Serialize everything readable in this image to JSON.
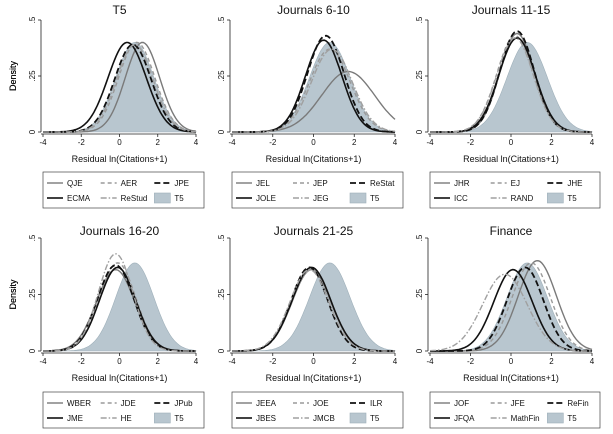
{
  "y_axis_label": "Density",
  "x_axis_label": "Residual ln(Citations+1)",
  "chart_data": [
    {
      "type": "area",
      "title": "T5",
      "xlim": [
        -4,
        4
      ],
      "ylim": [
        0,
        0.5
      ],
      "xticks": [
        -4,
        -2,
        0,
        2,
        4
      ],
      "yticks": [
        {
          "v": 0,
          "label": "0"
        },
        {
          "v": 0.25,
          "label": ".25"
        },
        {
          "v": 0.5,
          "label": ".5"
        }
      ],
      "shaded": {
        "name": "T5",
        "mu": 0.8,
        "sd": 1.0,
        "peak": 0.4
      },
      "series": [
        {
          "name": "QJE",
          "style": "solid-gray",
          "mu": 1.2,
          "sd": 0.9,
          "peak": 0.4
        },
        {
          "name": "AER",
          "style": "dash-gray",
          "mu": 0.9,
          "sd": 0.95,
          "peak": 0.4
        },
        {
          "name": "JPE",
          "style": "dash-black",
          "mu": 0.7,
          "sd": 0.95,
          "peak": 0.39
        },
        {
          "name": "ECMA",
          "style": "solid-black",
          "mu": 0.4,
          "sd": 1.0,
          "peak": 0.4
        },
        {
          "name": "ReStud",
          "style": "dashdot-gray",
          "mu": 0.8,
          "sd": 0.95,
          "peak": 0.39
        }
      ],
      "legend": [
        "QJE",
        "AER",
        "JPE",
        "ECMA",
        "ReStud",
        "T5"
      ]
    },
    {
      "type": "area",
      "title": "Journals 6-10",
      "xlim": [
        -4,
        4
      ],
      "ylim": [
        0,
        0.5
      ],
      "xticks": [
        -4,
        -2,
        0,
        2,
        4
      ],
      "yticks": [
        {
          "v": 0,
          "label": "0"
        },
        {
          "v": 0.25,
          "label": ".25"
        },
        {
          "v": 0.5,
          "label": ".5"
        }
      ],
      "shaded": {
        "name": "T5",
        "mu": 0.8,
        "sd": 1.0,
        "peak": 0.4
      },
      "series": [
        {
          "name": "JEL",
          "style": "solid-gray",
          "mu": 1.7,
          "sd": 1.3,
          "peak": 0.27
        },
        {
          "name": "JEP",
          "style": "dash-gray",
          "mu": 0.8,
          "sd": 1.0,
          "peak": 0.37
        },
        {
          "name": "ReStat",
          "style": "dash-black",
          "mu": 0.6,
          "sd": 0.9,
          "peak": 0.43
        },
        {
          "name": "JOLE",
          "style": "solid-black",
          "mu": 0.5,
          "sd": 0.9,
          "peak": 0.41
        },
        {
          "name": "JEG",
          "style": "dashdot-gray",
          "mu": 0.9,
          "sd": 1.0,
          "peak": 0.37
        }
      ],
      "legend": [
        "JEL",
        "JEP",
        "ReStat",
        "JOLE",
        "JEG",
        "T5"
      ]
    },
    {
      "type": "area",
      "title": "Journals 11-15",
      "xlim": [
        -4,
        4
      ],
      "ylim": [
        0,
        0.5
      ],
      "xticks": [
        -4,
        -2,
        0,
        2,
        4
      ],
      "yticks": [
        {
          "v": 0,
          "label": "0"
        },
        {
          "v": 0.25,
          "label": ".25"
        },
        {
          "v": 0.5,
          "label": ".5"
        }
      ],
      "shaded": {
        "name": "T5",
        "mu": 0.8,
        "sd": 1.0,
        "peak": 0.4
      },
      "series": [
        {
          "name": "JHR",
          "style": "solid-gray",
          "mu": 0.3,
          "sd": 0.85,
          "peak": 0.44
        },
        {
          "name": "EJ",
          "style": "dash-gray",
          "mu": 0.2,
          "sd": 0.9,
          "peak": 0.43
        },
        {
          "name": "JHE",
          "style": "dash-black",
          "mu": 0.3,
          "sd": 0.85,
          "peak": 0.45
        },
        {
          "name": "ICC",
          "style": "solid-black",
          "mu": 0.3,
          "sd": 0.9,
          "peak": 0.42
        },
        {
          "name": "RAND",
          "style": "dashdot-gray",
          "mu": 0.2,
          "sd": 0.9,
          "peak": 0.42
        }
      ],
      "legend": [
        "JHR",
        "EJ",
        "JHE",
        "ICC",
        "RAND",
        "T5"
      ]
    },
    {
      "type": "area",
      "title": "Journals 16-20",
      "xlim": [
        -4,
        4
      ],
      "ylim": [
        0,
        0.5
      ],
      "xticks": [
        -4,
        -2,
        0,
        2,
        4
      ],
      "yticks": [
        {
          "v": 0,
          "label": "0"
        },
        {
          "v": 0.25,
          "label": ".25"
        },
        {
          "v": 0.5,
          "label": ".5"
        }
      ],
      "shaded": {
        "name": "T5",
        "mu": 0.8,
        "sd": 1.0,
        "peak": 0.39
      },
      "series": [
        {
          "name": "WBER",
          "style": "solid-gray",
          "mu": -0.2,
          "sd": 1.0,
          "peak": 0.36
        },
        {
          "name": "JDE",
          "style": "dash-gray",
          "mu": -0.1,
          "sd": 0.95,
          "peak": 0.39
        },
        {
          "name": "JPub",
          "style": "dash-black",
          "mu": -0.2,
          "sd": 0.95,
          "peak": 0.38
        },
        {
          "name": "JME",
          "style": "solid-black",
          "mu": -0.1,
          "sd": 0.95,
          "peak": 0.37
        },
        {
          "name": "HE",
          "style": "dashdot-gray",
          "mu": -0.2,
          "sd": 0.9,
          "peak": 0.43
        }
      ],
      "legend": [
        "WBER",
        "JDE",
        "JPub",
        "JME",
        "HE",
        "T5"
      ]
    },
    {
      "type": "area",
      "title": "Journals 21-25",
      "xlim": [
        -4,
        4
      ],
      "ylim": [
        0,
        0.5
      ],
      "xticks": [
        -4,
        -2,
        0,
        2,
        4
      ],
      "yticks": [
        {
          "v": 0,
          "label": "0"
        },
        {
          "v": 0.25,
          "label": ".25"
        },
        {
          "v": 0.5,
          "label": ".5"
        }
      ],
      "shaded": {
        "name": "T5",
        "mu": 0.8,
        "sd": 1.0,
        "peak": 0.39
      },
      "series": [
        {
          "name": "JEEA",
          "style": "solid-gray",
          "mu": -0.1,
          "sd": 0.95,
          "peak": 0.36
        },
        {
          "name": "JOE",
          "style": "dash-gray",
          "mu": -0.1,
          "sd": 0.95,
          "peak": 0.36
        },
        {
          "name": "ILR",
          "style": "dash-black",
          "mu": -0.2,
          "sd": 0.9,
          "peak": 0.37
        },
        {
          "name": "JBES",
          "style": "solid-black",
          "mu": -0.1,
          "sd": 0.95,
          "peak": 0.37
        },
        {
          "name": "JMCB",
          "style": "dashdot-gray",
          "mu": -0.2,
          "sd": 0.95,
          "peak": 0.36
        }
      ],
      "legend": [
        "JEEA",
        "JOE",
        "ILR",
        "JBES",
        "JMCB",
        "T5"
      ]
    },
    {
      "type": "area",
      "title": "Finance",
      "xlim": [
        -4,
        4
      ],
      "ylim": [
        0,
        0.5
      ],
      "xticks": [
        -4,
        -2,
        0,
        2,
        4
      ],
      "yticks": [
        {
          "v": 0,
          "label": "0"
        },
        {
          "v": 0.25,
          "label": ".25"
        },
        {
          "v": 0.5,
          "label": ".5"
        }
      ],
      "shaded": {
        "name": "T5",
        "mu": 0.8,
        "sd": 1.0,
        "peak": 0.39
      },
      "series": [
        {
          "name": "JOF",
          "style": "solid-gray",
          "mu": 1.3,
          "sd": 0.95,
          "peak": 0.4
        },
        {
          "name": "JFE",
          "style": "dash-gray",
          "mu": 1.0,
          "sd": 0.95,
          "peak": 0.39
        },
        {
          "name": "ReFin",
          "style": "dash-black",
          "mu": 0.7,
          "sd": 0.9,
          "peak": 0.37
        },
        {
          "name": "JFQA",
          "style": "solid-black",
          "mu": 0.1,
          "sd": 0.95,
          "peak": 0.36
        },
        {
          "name": "MathFin",
          "style": "dashdot-gray",
          "mu": -0.3,
          "sd": 1.1,
          "peak": 0.34
        }
      ],
      "legend": [
        "JOF",
        "JFE",
        "ReFin",
        "JFQA",
        "MathFin",
        "T5"
      ]
    }
  ]
}
